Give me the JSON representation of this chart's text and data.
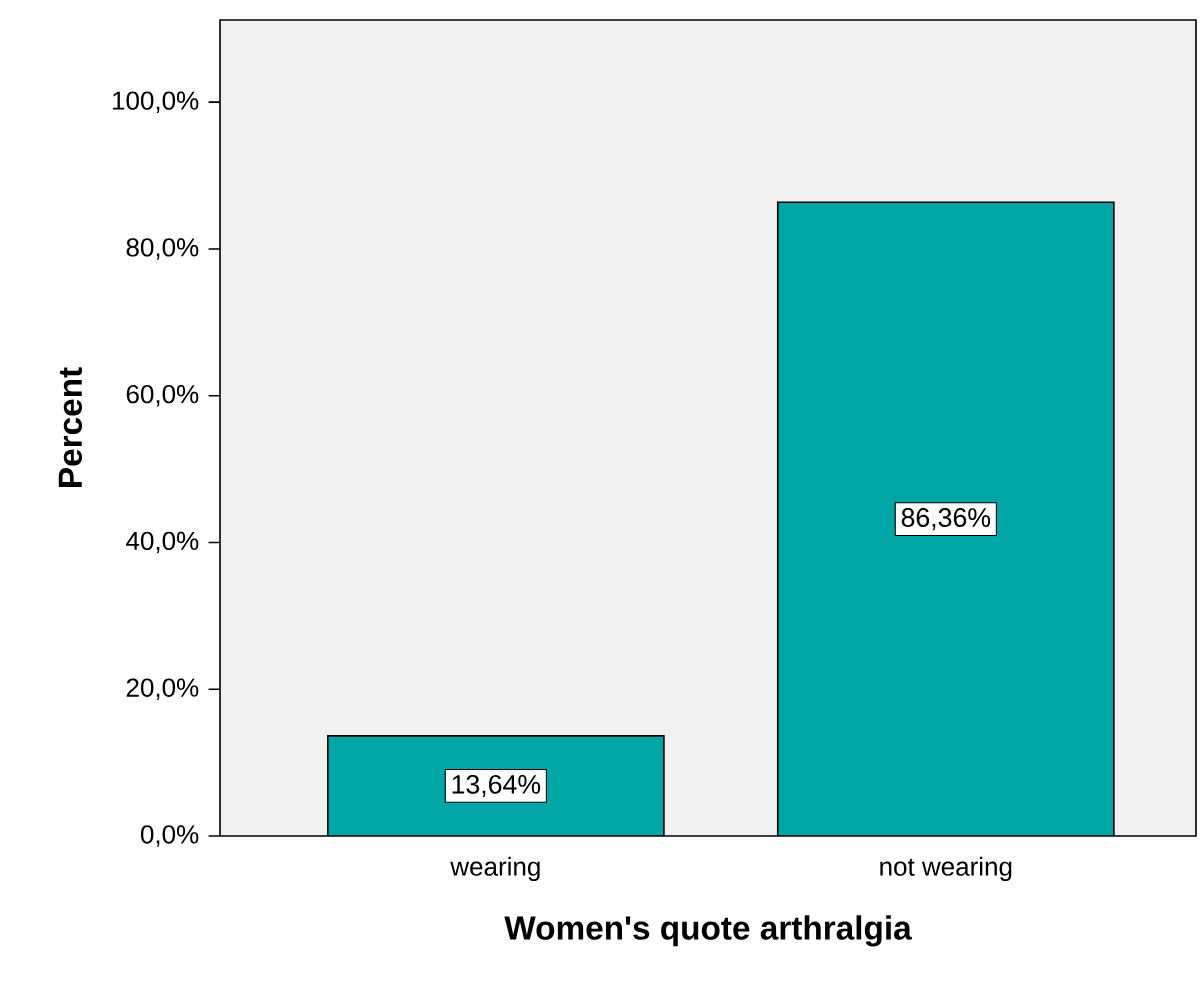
{
  "chart_data": {
    "type": "bar",
    "xlabel": "Women's quote arthralgia",
    "ylabel": "Percent",
    "categories": [
      "wearing",
      "not wearing"
    ],
    "values": [
      13.64,
      86.36
    ],
    "color": "#00a6a6",
    "value_labels": [
      "13,64%",
      "86,36%"
    ],
    "ylim": [
      0,
      111.2
    ],
    "yticks": [
      {
        "value": 0,
        "label": "0,0%"
      },
      {
        "value": 20,
        "label": "20,0%"
      },
      {
        "value": 40,
        "label": "40,0%"
      },
      {
        "value": 60,
        "label": "60,0%"
      },
      {
        "value": 80,
        "label": "80,0%"
      },
      {
        "value": 100,
        "label": "100,0%"
      }
    ]
  }
}
